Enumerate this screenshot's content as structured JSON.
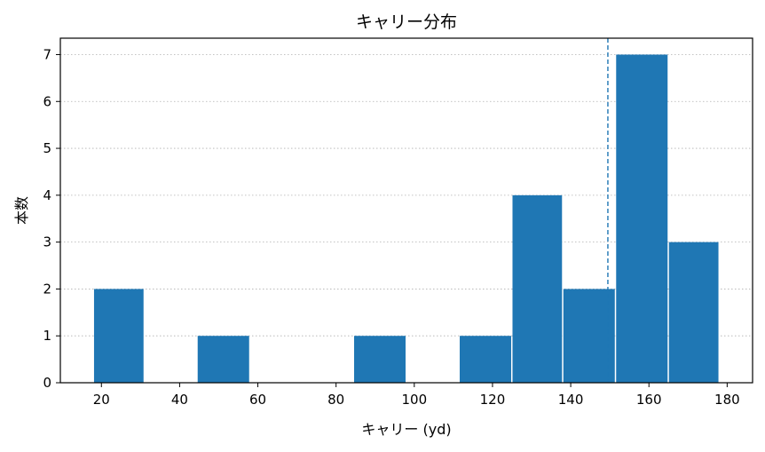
{
  "chart_data": {
    "type": "bar",
    "title": "キャリー分布",
    "xlabel": "キャリー (yd)",
    "ylabel": "本数",
    "bins": [
      {
        "start": 18,
        "end": 31,
        "count": 2
      },
      {
        "start": 31,
        "end": 44.5,
        "count": 0
      },
      {
        "start": 44.5,
        "end": 58,
        "count": 1
      },
      {
        "start": 58,
        "end": 71.5,
        "count": 0
      },
      {
        "start": 71.5,
        "end": 84.5,
        "count": 0
      },
      {
        "start": 84.5,
        "end": 98,
        "count": 1
      },
      {
        "start": 98,
        "end": 111.5,
        "count": 0
      },
      {
        "start": 111.5,
        "end": 125,
        "count": 1
      },
      {
        "start": 125,
        "end": 138,
        "count": 4
      },
      {
        "start": 138,
        "end": 151.5,
        "count": 2
      },
      {
        "start": 151.5,
        "end": 165,
        "count": 7
      },
      {
        "start": 165,
        "end": 178,
        "count": 3
      }
    ],
    "reference_line": {
      "x": 149.5,
      "style": "dashed",
      "color": "#1f77b4"
    },
    "xlim": [
      9.5,
      186.5
    ],
    "ylim": [
      0,
      7.35
    ],
    "xticks": [
      20,
      40,
      60,
      80,
      100,
      120,
      140,
      160,
      180
    ],
    "yticks": [
      0,
      1,
      2,
      3,
      4,
      5,
      6,
      7
    ],
    "grid": "y-dotted",
    "bar_color": "#1f77b4"
  }
}
